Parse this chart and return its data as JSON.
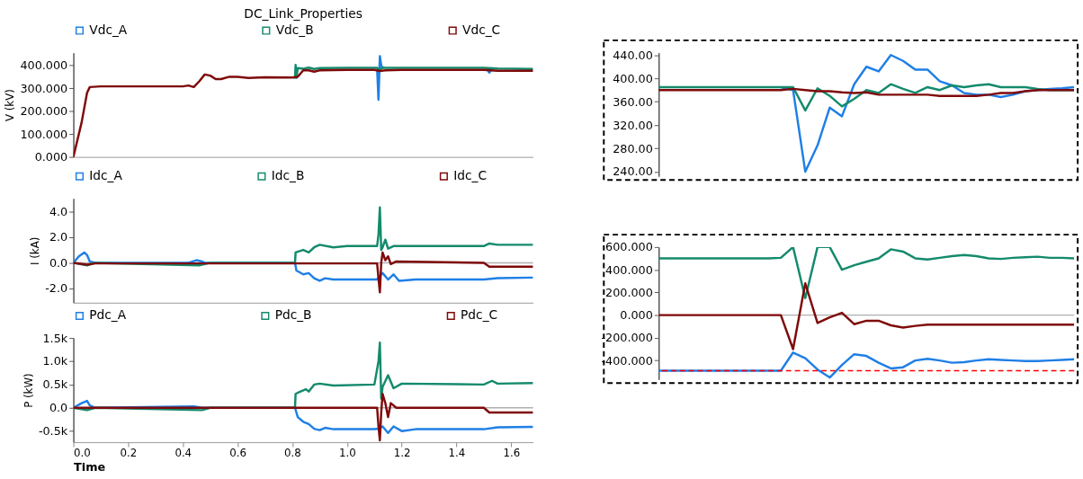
{
  "chart_data": [
    {
      "type": "line",
      "title": "DC_Link_Properties",
      "ylabel": "V (kV)",
      "xlim": [
        0,
        1.68
      ],
      "ylim": [
        0,
        455
      ],
      "tick_labels": "y",
      "legend": "top",
      "grid": false,
      "yticks": [
        {
          "value": 0,
          "label": "0.000"
        },
        {
          "value": 100,
          "label": "100.000"
        },
        {
          "value": 200,
          "label": "200.000"
        },
        {
          "value": 300,
          "label": "300.000"
        },
        {
          "value": 400,
          "label": "400.000"
        }
      ],
      "series": [
        {
          "name": "Vdc_A",
          "color": "#1f7fe6",
          "x": [
            1.11,
            1.115,
            1.12,
            1.125,
            1.13,
            1.14,
            1.5,
            1.51,
            1.52,
            1.53
          ],
          "values": [
            384,
            250,
            440,
            400,
            388,
            null,
            null,
            385,
            368,
            386
          ]
        },
        {
          "name": "Vdc_B",
          "color": "#148a6c",
          "x": [
            0.805,
            0.81,
            0.812,
            0.815,
            0.82,
            0.84,
            0.86,
            0.88,
            0.9,
            1.0,
            1.11,
            1.12,
            1.13,
            1.14,
            1.2,
            1.5,
            1.55,
            1.68
          ],
          "values": [
            347,
            347,
            402,
            345,
            388,
            385,
            390,
            384,
            388,
            389,
            389,
            380,
            390,
            389,
            389,
            389,
            386,
            384
          ]
        },
        {
          "name": "Vdc_C",
          "color": "#7f0a0a",
          "x": [
            0,
            0.03,
            0.05,
            0.06,
            0.1,
            0.4,
            0.42,
            0.44,
            0.46,
            0.48,
            0.5,
            0.52,
            0.54,
            0.57,
            0.6,
            0.64,
            0.7,
            0.8,
            0.82,
            0.84,
            0.86,
            0.88,
            0.9,
            1.0,
            1.1,
            1.12,
            1.14,
            1.2,
            1.5,
            1.55,
            1.68
          ],
          "values": [
            0,
            150,
            280,
            305,
            308,
            308,
            312,
            305,
            330,
            360,
            355,
            340,
            340,
            350,
            350,
            345,
            348,
            347,
            350,
            378,
            378,
            372,
            378,
            380,
            380,
            375,
            378,
            380,
            380,
            376,
            376
          ]
        }
      ]
    },
    {
      "type": "line",
      "ylabel": "I (kA)",
      "xlim": [
        0,
        1.68
      ],
      "ylim": [
        -3.1,
        5.0
      ],
      "tick_labels": "y",
      "legend": "top",
      "grid": false,
      "yticks": [
        {
          "value": -2,
          "label": "-2.0"
        },
        {
          "value": 0,
          "label": "0.0"
        },
        {
          "value": 2,
          "label": "2.0"
        },
        {
          "value": 4,
          "label": "4.0"
        }
      ],
      "ref_lines": [
        {
          "axis": "y",
          "value": 0,
          "color": "#b0b0b0"
        }
      ],
      "series": [
        {
          "name": "Idc_A",
          "color": "#1f7fe6",
          "x": [
            0,
            0.02,
            0.04,
            0.05,
            0.06,
            0.08,
            0.42,
            0.45,
            0.47,
            0.48,
            0.81,
            0.815,
            0.84,
            0.86,
            0.88,
            0.9,
            0.92,
            0.95,
            1.0,
            1.11,
            1.12,
            1.13,
            1.15,
            1.17,
            1.19,
            1.25,
            1.5,
            1.55,
            1.68
          ],
          "values": [
            0,
            0.5,
            0.8,
            0.6,
            0.1,
            0,
            0,
            0.2,
            0.1,
            0,
            0,
            -0.6,
            -0.9,
            -0.8,
            -1.2,
            -1.4,
            -1.2,
            -1.3,
            -1.3,
            -1.3,
            -1.0,
            -0.8,
            -1.3,
            -0.9,
            -1.4,
            -1.3,
            -1.3,
            -1.2,
            -1.15
          ]
        },
        {
          "name": "Idc_B",
          "color": "#148a6c",
          "x": [
            0,
            0.05,
            0.08,
            0.46,
            0.5,
            0.81,
            0.812,
            0.84,
            0.86,
            0.88,
            0.9,
            0.95,
            1.0,
            1.11,
            1.115,
            1.12,
            1.125,
            1.13,
            1.14,
            1.15,
            1.17,
            1.5,
            1.52,
            1.55,
            1.68
          ],
          "values": [
            0,
            -0.2,
            0,
            -0.2,
            0,
            0,
            0.8,
            1.0,
            0.8,
            1.2,
            1.4,
            1.2,
            1.3,
            1.3,
            2.2,
            4.3,
            1.0,
            1.2,
            1.8,
            1.1,
            1.3,
            1.3,
            1.5,
            1.4,
            1.4
          ]
        },
        {
          "name": "Idc_C",
          "color": "#7f0a0a",
          "x": [
            0,
            0.05,
            0.08,
            0.81,
            1.11,
            1.115,
            1.12,
            1.125,
            1.13,
            1.14,
            1.15,
            1.16,
            1.18,
            1.5,
            1.52,
            1.68
          ],
          "values": [
            0,
            -0.15,
            -0.05,
            -0.05,
            -0.05,
            -1.2,
            -2.3,
            0.0,
            0.8,
            0.2,
            0.5,
            -0.1,
            0.1,
            0.0,
            -0.3,
            -0.3
          ]
        }
      ]
    },
    {
      "type": "line",
      "ylabel": "P (kW)",
      "xlabel": "Time",
      "xlim": [
        0,
        1.68
      ],
      "ylim": [
        -740,
        1500
      ],
      "legend": "top",
      "grid": false,
      "xticks": [
        {
          "value": 0,
          "label": "0.0"
        },
        {
          "value": 0.2,
          "label": "0.2"
        },
        {
          "value": 0.4,
          "label": "0.4"
        },
        {
          "value": 0.6,
          "label": "0.6"
        },
        {
          "value": 0.8,
          "label": "0.8"
        },
        {
          "value": 1.0,
          "label": "1.0"
        },
        {
          "value": 1.2,
          "label": "1.2"
        },
        {
          "value": 1.4,
          "label": "1.4"
        },
        {
          "value": 1.6,
          "label": "1.6"
        }
      ],
      "yticks": [
        {
          "value": -500,
          "label": "-0.5k"
        },
        {
          "value": 0,
          "label": "0.0"
        },
        {
          "value": 500,
          "label": "0.5k"
        },
        {
          "value": 1000,
          "label": "1.0k"
        },
        {
          "value": 1500,
          "label": "1.5k"
        }
      ],
      "ref_lines": [
        {
          "axis": "y",
          "value": 0,
          "color": "#b0b0b0"
        }
      ],
      "series": [
        {
          "name": "Pdc_A",
          "color": "#1f7fe6",
          "x": [
            0,
            0.03,
            0.05,
            0.06,
            0.08,
            0.44,
            0.47,
            0.81,
            0.82,
            0.84,
            0.86,
            0.88,
            0.9,
            0.92,
            0.95,
            1.1,
            1.115,
            1.13,
            1.15,
            1.17,
            1.2,
            1.25,
            1.5,
            1.55,
            1.68
          ],
          "values": [
            0,
            100,
            150,
            50,
            0,
            30,
            0,
            0,
            -200,
            -300,
            -350,
            -450,
            -480,
            -430,
            -460,
            -460,
            -450,
            -400,
            -540,
            -400,
            -500,
            -460,
            -460,
            -420,
            -410
          ]
        },
        {
          "name": "Pdc_B",
          "color": "#148a6c",
          "x": [
            0,
            0.05,
            0.08,
            0.47,
            0.5,
            0.81,
            0.812,
            0.83,
            0.85,
            0.86,
            0.88,
            0.9,
            0.95,
            1.1,
            1.115,
            1.12,
            1.125,
            1.13,
            1.15,
            1.17,
            1.2,
            1.5,
            1.53,
            1.55,
            1.68
          ],
          "values": [
            0,
            -50,
            0,
            -50,
            0,
            0,
            300,
            350,
            400,
            350,
            500,
            520,
            480,
            500,
            1000,
            1400,
            200,
            450,
            700,
            420,
            520,
            500,
            580,
            520,
            530
          ]
        },
        {
          "name": "Pdc_C",
          "color": "#7f0a0a",
          "x": [
            0,
            1.11,
            1.115,
            1.12,
            1.125,
            1.13,
            1.14,
            1.15,
            1.16,
            1.18,
            1.5,
            1.52,
            1.68
          ],
          "values": [
            0,
            0,
            -400,
            -700,
            -100,
            300,
            100,
            -200,
            100,
            0,
            0,
            -100,
            -100
          ]
        }
      ]
    },
    {
      "type": "line",
      "ylim": [
        232,
        444
      ],
      "tick_labels": "y",
      "grid": false,
      "yticks": [
        {
          "value": 240,
          "label": "240.00"
        },
        {
          "value": 280,
          "label": "280.00"
        },
        {
          "value": 320,
          "label": "320.00"
        },
        {
          "value": 360,
          "label": "360.00"
        },
        {
          "value": 400,
          "label": "400.00"
        },
        {
          "value": 440,
          "label": "440.00"
        }
      ],
      "categories": [
        null,
        null,
        null,
        null,
        null,
        null,
        null,
        null,
        null,
        null,
        null,
        null,
        null,
        null,
        null,
        null,
        null,
        null,
        null,
        null,
        null,
        null,
        null,
        null,
        null,
        null,
        null,
        null,
        null,
        null,
        null,
        null,
        null,
        null,
        null
      ],
      "series": [
        {
          "color": "#1f7fe6",
          "values": [
            null,
            null,
            null,
            null,
            null,
            null,
            null,
            null,
            null,
            null,
            385,
            380,
            240,
            285,
            350,
            335,
            390,
            420,
            412,
            440,
            430,
            415,
            415,
            395,
            388,
            375,
            372,
            372,
            368,
            372,
            378,
            380,
            382,
            383,
            385
          ]
        },
        {
          "color": "#148a6c",
          "values": [
            385,
            385,
            385,
            385,
            385,
            385,
            385,
            385,
            385,
            385,
            385,
            385,
            345,
            383,
            370,
            352,
            365,
            380,
            375,
            390,
            382,
            375,
            385,
            380,
            388,
            385,
            388,
            390,
            385,
            385,
            385,
            382,
            380,
            380,
            380
          ]
        },
        {
          "color": "#7f0a0a",
          "values": [
            380,
            380,
            380,
            380,
            380,
            380,
            380,
            380,
            380,
            380,
            380,
            382,
            380,
            378,
            378,
            376,
            375,
            376,
            372,
            372,
            372,
            372,
            372,
            370,
            370,
            370,
            370,
            372,
            375,
            375,
            378,
            380,
            380,
            380,
            380
          ]
        }
      ]
    },
    {
      "type": "line",
      "ylim": [
        -568,
        600
      ],
      "tick_labels": "y",
      "grid": false,
      "yticks": [
        {
          "value": -400,
          "label": "-400.000"
        },
        {
          "value": -200,
          "label": "-200.000"
        },
        {
          "value": 0,
          "label": "0.000"
        },
        {
          "value": 200,
          "label": "200.000"
        },
        {
          "value": 400,
          "label": "400.000"
        },
        {
          "value": 600,
          "label": "600.000"
        }
      ],
      "categories": [
        null,
        null,
        null,
        null,
        null,
        null,
        null,
        null,
        null,
        null,
        null,
        null,
        null,
        null,
        null,
        null,
        null,
        null,
        null,
        null,
        null,
        null,
        null,
        null,
        null,
        null,
        null,
        null,
        null,
        null,
        null,
        null,
        null,
        null,
        null
      ],
      "ref_lines": [
        {
          "axis": "y",
          "value": 0,
          "color": "#b0b0b0"
        },
        {
          "axis": "y",
          "value": -490,
          "color": "#ff0000",
          "line_style": "dashed"
        }
      ],
      "series": [
        {
          "color": "#148a6c",
          "values": [
            500,
            500,
            500,
            500,
            500,
            500,
            500,
            500,
            500,
            500,
            505,
            600,
            150,
            600,
            600,
            400,
            440,
            470,
            500,
            580,
            560,
            500,
            490,
            505,
            520,
            530,
            520,
            500,
            495,
            505,
            510,
            515,
            505,
            505,
            500
          ]
        },
        {
          "color": "#7f0a0a",
          "values": [
            0,
            0,
            0,
            0,
            0,
            0,
            0,
            0,
            0,
            0,
            0,
            -300,
            280,
            -70,
            -20,
            20,
            -80,
            -50,
            -50,
            -90,
            -110,
            -95,
            -85,
            -85,
            -85,
            -85,
            -85,
            -85,
            -85,
            -85,
            -85,
            -85,
            -85,
            -85,
            -85
          ]
        },
        {
          "color": "#1f7fe6",
          "values": [
            -490,
            -490,
            -490,
            -490,
            -490,
            -490,
            -490,
            -490,
            -490,
            -490,
            -490,
            -330,
            -380,
            -480,
            -550,
            -440,
            -345,
            -360,
            -420,
            -470,
            -460,
            -400,
            -385,
            -400,
            -420,
            -415,
            -400,
            -390,
            -395,
            -400,
            -405,
            -405,
            -400,
            -395,
            -390
          ]
        }
      ]
    }
  ]
}
